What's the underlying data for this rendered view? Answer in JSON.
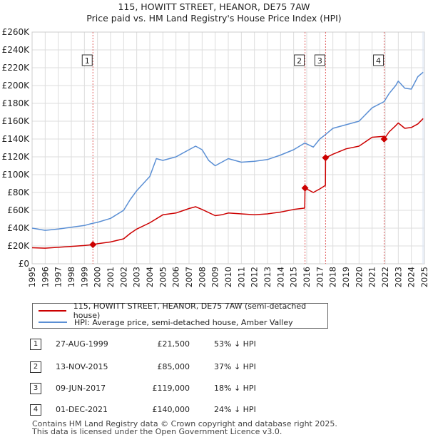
{
  "title_line1": "115, HOWITT STREET, HEANOR, DE75 7AW",
  "title_line2": "Price paid vs. HM Land Registry's House Price Index (HPI)",
  "colors": {
    "property": "#cc0000",
    "hpi": "#5b8fd4",
    "marker": "#cc0000",
    "guide": "#e06060",
    "grid": "#dddddd",
    "shade": "#dde6f3"
  },
  "chart_data": {
    "type": "line",
    "ylim": [
      0,
      260000
    ],
    "xlim": [
      1995.0,
      2025.0
    ],
    "yticks": [
      {
        "v": 0,
        "label": "£0"
      },
      {
        "v": 20000,
        "label": "£20K"
      },
      {
        "v": 40000,
        "label": "£40K"
      },
      {
        "v": 60000,
        "label": "£60K"
      },
      {
        "v": 80000,
        "label": "£80K"
      },
      {
        "v": 100000,
        "label": "£100K"
      },
      {
        "v": 120000,
        "label": "£120K"
      },
      {
        "v": 140000,
        "label": "£140K"
      },
      {
        "v": 160000,
        "label": "£160K"
      },
      {
        "v": 180000,
        "label": "£180K"
      },
      {
        "v": 200000,
        "label": "£200K"
      },
      {
        "v": 220000,
        "label": "£220K"
      },
      {
        "v": 240000,
        "label": "£240K"
      },
      {
        "v": 260000,
        "label": "£260K"
      }
    ],
    "xticks": [
      "1995",
      "1996",
      "1997",
      "1998",
      "1999",
      "2000",
      "2001",
      "2002",
      "2003",
      "2004",
      "2005",
      "2006",
      "2007",
      "2008",
      "2009",
      "2010",
      "2011",
      "2012",
      "2013",
      "2014",
      "2015",
      "2016",
      "2017",
      "2018",
      "2019",
      "2020",
      "2021",
      "2022",
      "2023",
      "2024",
      "2025"
    ],
    "series": [
      {
        "name": "115, HOWITT STREET, HEANOR, DE75 7AW (semi-detached house)",
        "color": "#cc0000",
        "points": [
          [
            1995.0,
            18000
          ],
          [
            1996.0,
            17500
          ],
          [
            1997.0,
            18500
          ],
          [
            1998.0,
            19500
          ],
          [
            1999.0,
            20500
          ],
          [
            1999.65,
            21500
          ],
          [
            2000.0,
            22500
          ],
          [
            2001.0,
            24500
          ],
          [
            2002.0,
            28000
          ],
          [
            2002.5,
            34000
          ],
          [
            2003.0,
            39000
          ],
          [
            2004.0,
            46000
          ],
          [
            2005.0,
            55000
          ],
          [
            2006.0,
            57000
          ],
          [
            2007.0,
            62000
          ],
          [
            2007.5,
            64000
          ],
          [
            2008.0,
            61000
          ],
          [
            2009.0,
            54000
          ],
          [
            2009.5,
            55000
          ],
          [
            2010.0,
            57000
          ],
          [
            2011.0,
            56000
          ],
          [
            2012.0,
            55000
          ],
          [
            2013.0,
            56000
          ],
          [
            2014.0,
            58000
          ],
          [
            2015.0,
            61000
          ],
          [
            2015.85,
            62500
          ],
          [
            2015.87,
            85000
          ],
          [
            2016.5,
            80000
          ],
          [
            2017.0,
            84000
          ],
          [
            2017.43,
            88000
          ],
          [
            2017.44,
            119000
          ],
          [
            2018.0,
            123000
          ],
          [
            2019.0,
            129000
          ],
          [
            2020.0,
            132000
          ],
          [
            2021.0,
            142000
          ],
          [
            2021.9,
            143000
          ],
          [
            2021.92,
            140000
          ],
          [
            2022.3,
            148000
          ],
          [
            2022.8,
            155000
          ],
          [
            2023.0,
            158000
          ],
          [
            2023.5,
            152000
          ],
          [
            2024.0,
            153000
          ],
          [
            2024.5,
            157000
          ],
          [
            2024.9,
            163000
          ]
        ]
      },
      {
        "name": "HPI: Average price, semi-detached house, Amber Valley",
        "color": "#5b8fd4",
        "points": [
          [
            1995.0,
            40000
          ],
          [
            1996.0,
            37500
          ],
          [
            1997.0,
            39000
          ],
          [
            1998.0,
            41000
          ],
          [
            1999.0,
            43000
          ],
          [
            1999.65,
            45500
          ],
          [
            2000.0,
            46500
          ],
          [
            2001.0,
            51000
          ],
          [
            2002.0,
            60000
          ],
          [
            2002.5,
            72000
          ],
          [
            2003.0,
            82000
          ],
          [
            2004.0,
            98000
          ],
          [
            2004.5,
            118000
          ],
          [
            2005.0,
            116000
          ],
          [
            2006.0,
            120000
          ],
          [
            2007.0,
            128000
          ],
          [
            2007.5,
            132000
          ],
          [
            2008.0,
            128000
          ],
          [
            2008.5,
            116000
          ],
          [
            2009.0,
            110000
          ],
          [
            2010.0,
            118000
          ],
          [
            2011.0,
            114000
          ],
          [
            2012.0,
            115000
          ],
          [
            2013.0,
            117000
          ],
          [
            2014.0,
            122000
          ],
          [
            2015.0,
            128000
          ],
          [
            2015.85,
            135500
          ],
          [
            2016.5,
            131000
          ],
          [
            2017.0,
            140000
          ],
          [
            2017.43,
            145000
          ],
          [
            2018.0,
            152000
          ],
          [
            2019.0,
            156000
          ],
          [
            2020.0,
            160000
          ],
          [
            2021.0,
            175000
          ],
          [
            2021.92,
            182000
          ],
          [
            2022.3,
            191000
          ],
          [
            2022.8,
            200000
          ],
          [
            2023.0,
            205000
          ],
          [
            2023.5,
            197000
          ],
          [
            2024.0,
            196000
          ],
          [
            2024.5,
            210000
          ],
          [
            2024.9,
            215000
          ]
        ]
      }
    ],
    "sales": [
      {
        "n": "1",
        "x": 1999.65,
        "y": 21500
      },
      {
        "n": "2",
        "x": 2015.87,
        "y": 85000
      },
      {
        "n": "3",
        "x": 2017.44,
        "y": 119000
      },
      {
        "n": "4",
        "x": 2021.92,
        "y": 140000
      }
    ],
    "shaded_from": 2024.83
  },
  "legend": {
    "property": "115, HOWITT STREET, HEANOR, DE75 7AW (semi-detached house)",
    "hpi": "HPI: Average price, semi-detached house, Amber Valley"
  },
  "transactions": [
    {
      "n": "1",
      "date": "27-AUG-1999",
      "price": "£21,500",
      "hpi": "53% ↓ HPI"
    },
    {
      "n": "2",
      "date": "13-NOV-2015",
      "price": "£85,000",
      "hpi": "37% ↓ HPI"
    },
    {
      "n": "3",
      "date": "09-JUN-2017",
      "price": "£119,000",
      "hpi": "18% ↓ HPI"
    },
    {
      "n": "4",
      "date": "01-DEC-2021",
      "price": "£140,000",
      "hpi": "24% ↓ HPI"
    }
  ],
  "footer_line1": "Contains HM Land Registry data © Crown copyright and database right 2025.",
  "footer_line2": "This data is licensed under the Open Government Licence v3.0."
}
